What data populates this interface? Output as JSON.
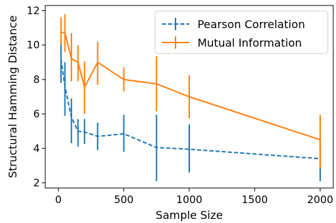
{
  "chart_data": {
    "type": "line",
    "title": "",
    "xlabel": "Sample Size",
    "ylabel": "Structural Hamming Distance",
    "xlim": [
      -100,
      2100
    ],
    "ylim": [
      1.7,
      12.3
    ],
    "xticks": [
      0,
      500,
      1000,
      1500,
      2000
    ],
    "yticks": [
      2,
      4,
      6,
      8,
      10,
      12
    ],
    "grid": false,
    "legend_position": "top-right",
    "series": [
      {
        "name": "Pearson Correlation",
        "color": "#1f77b4",
        "style": "dashed",
        "x": [
          20,
          50,
          100,
          150,
          200,
          300,
          500,
          750,
          1000,
          2000
        ],
        "y": [
          9.2,
          7.6,
          5.8,
          5.0,
          4.95,
          4.7,
          4.85,
          4.05,
          3.95,
          3.4
        ],
        "err_low": [
          7.8,
          5.9,
          4.3,
          4.1,
          4.25,
          3.9,
          3.8,
          2.1,
          2.6,
          2.1
        ],
        "err_high": [
          10.3,
          9.0,
          6.9,
          5.7,
          5.7,
          5.5,
          5.95,
          5.95,
          5.4,
          4.6
        ]
      },
      {
        "name": "Mutual Information",
        "color": "#ff7f0e",
        "style": "solid",
        "x": [
          20,
          50,
          100,
          150,
          200,
          300,
          500,
          750,
          1000,
          2000
        ],
        "y": [
          10.7,
          10.75,
          9.2,
          9.0,
          7.55,
          9.0,
          8.0,
          7.75,
          7.0,
          4.5
        ],
        "err_low": [
          10.0,
          9.6,
          7.9,
          7.9,
          6.0,
          7.7,
          7.3,
          6.15,
          5.75,
          2.85
        ],
        "err_high": [
          11.6,
          11.8,
          10.7,
          10.0,
          9.05,
          10.2,
          8.7,
          9.35,
          8.25,
          5.95
        ]
      }
    ]
  }
}
